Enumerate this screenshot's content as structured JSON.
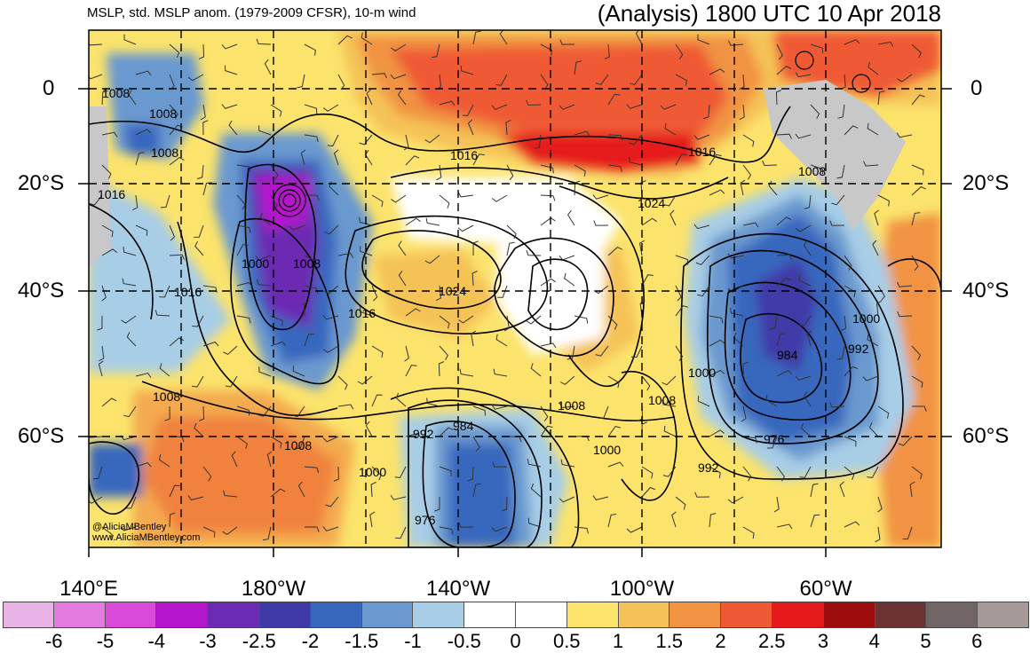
{
  "header": {
    "left_title": "MSLP, std. MSLP anom. (1979-2009 CFSR), 10-m wind",
    "right_title": "(Analysis) 1800 UTC 10 Apr 2018"
  },
  "map": {
    "region": "South Pacific / South America",
    "lat_labels": [
      "0",
      "20°S",
      "40°S",
      "60°S"
    ],
    "lon_labels": [
      "140°E",
      "180°W",
      "140°W",
      "100°W",
      "60°W"
    ],
    "isobar_labels": [
      "1008",
      "1008",
      "1008",
      "1016",
      "1000",
      "1008",
      "1016",
      "1016",
      "1024",
      "1016",
      "1024",
      "1008",
      "992",
      "984",
      "1008",
      "1000",
      "1008",
      "976",
      "1016",
      "1008",
      "1000",
      "992",
      "984",
      "976",
      "1000",
      "1008",
      "1000",
      "992"
    ],
    "credits": [
      "@AliciaMBentley",
      "www.AliciaMBentley.com"
    ],
    "background_colors": {
      "land": "#c8c8c8",
      "ocean_neutral": "#ffffff"
    }
  },
  "colorbar": {
    "colors": [
      "#e8b4e6",
      "#e27ae0",
      "#d94ad8",
      "#b516cc",
      "#6c2bb3",
      "#3f3aa8",
      "#3867be",
      "#6b99cf",
      "#a8cde6",
      "#ffffff",
      "#ffffff",
      "#fbe36c",
      "#f5c257",
      "#f19342",
      "#ef5a34",
      "#e61a1a",
      "#9c0c0c",
      "#6b3232",
      "#706564",
      "#a59a98"
    ],
    "tick_labels": [
      "-6",
      "-5",
      "-4",
      "-3",
      "-2.5",
      "-2",
      "-1.5",
      "-1",
      "-0.5",
      "0",
      "0.5",
      "1",
      "1.5",
      "2",
      "2.5",
      "3",
      "4",
      "5",
      "6"
    ]
  }
}
